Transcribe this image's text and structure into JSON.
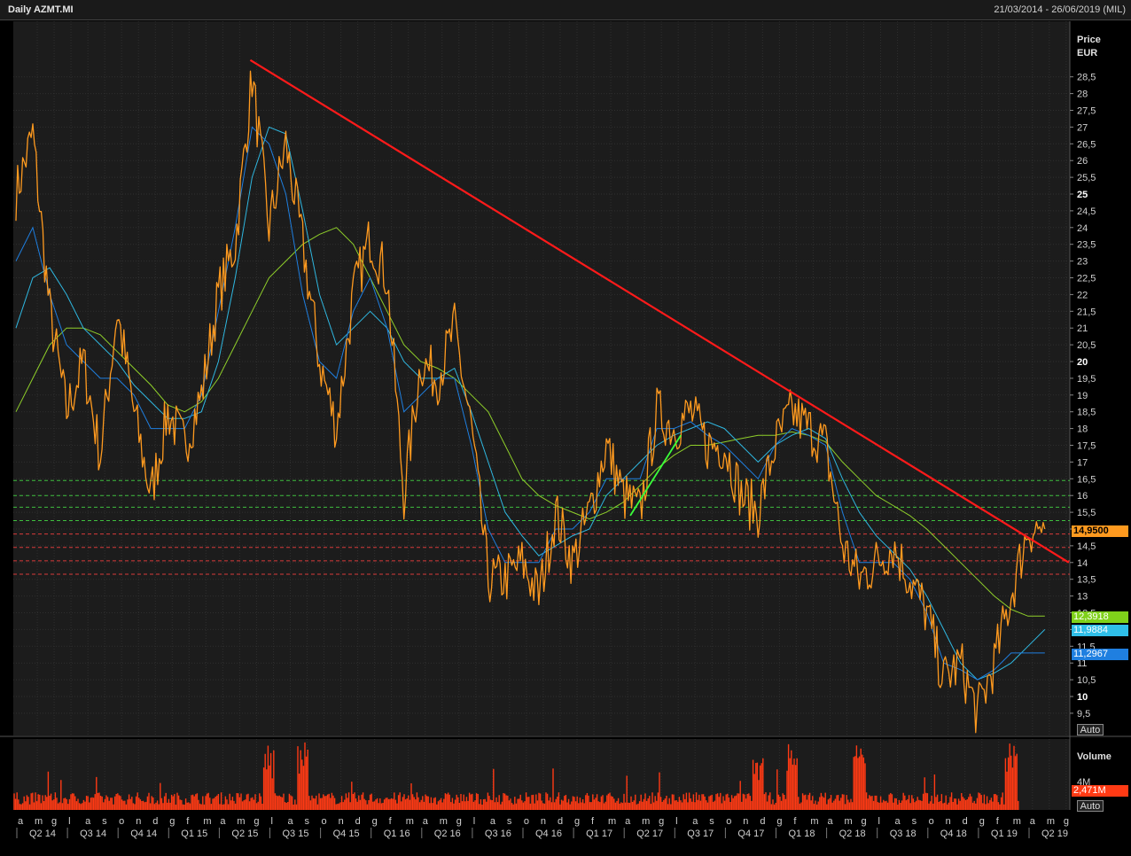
{
  "header": {
    "title": "Daily AZMT.MI",
    "date_range": "21/03/2014 - 26/06/2019 (MIL)"
  },
  "price_axis": {
    "label_line1": "Price",
    "label_line2": "EUR",
    "auto_label": "Auto",
    "ticks": [
      "28,5",
      "28",
      "27,5",
      "27",
      "26,5",
      "26",
      "25,5",
      "25",
      "24,5",
      "24",
      "23,5",
      "23",
      "22,5",
      "22",
      "21,5",
      "21",
      "20,5",
      "20",
      "19,5",
      "19",
      "18,5",
      "18",
      "17,5",
      "17",
      "16,5",
      "16",
      "15,5",
      "15",
      "14,5",
      "14",
      "13,5",
      "13",
      "12,5",
      "12",
      "11,5",
      "11",
      "10,5",
      "10",
      "9,5"
    ],
    "bold_ticks": [
      "25",
      "20",
      "15",
      "10"
    ]
  },
  "volume_axis": {
    "label": "Volume",
    "tick": "4M",
    "auto_label": "Auto"
  },
  "tags": {
    "last_price": "14,9500",
    "ma_long": "12,3918",
    "ma_mid": "11,9884",
    "ma_short": "11,2967",
    "volume": "2,471M"
  },
  "colors": {
    "price": "#ff9a1f",
    "trendline": "#ff1a1a",
    "ma_long": "#8fcf2a",
    "ma_mid": "#2fb7e0",
    "ma_short": "#1f7fe0",
    "support_green": "#3fbf3f",
    "resistance_red": "#d83a3a",
    "volume": "#ff3a14",
    "uptrend": "#3aff3a"
  },
  "x_axis": {
    "months": [
      "a",
      "m",
      "g",
      "l",
      "a",
      "s",
      "o",
      "n",
      "d",
      "g",
      "f",
      "m",
      "a",
      "m",
      "g",
      "l",
      "a",
      "s",
      "o",
      "n",
      "d",
      "g",
      "f",
      "m",
      "a",
      "m",
      "g",
      "l",
      "a",
      "s",
      "o",
      "n",
      "d",
      "g",
      "f",
      "m",
      "a",
      "m",
      "g",
      "l",
      "a",
      "s",
      "o",
      "n",
      "d",
      "g",
      "f",
      "m",
      "a",
      "m",
      "g",
      "l",
      "a",
      "s",
      "o",
      "n",
      "d",
      "g",
      "f",
      "m",
      "a",
      "m",
      "g"
    ],
    "quarters": [
      "Q2 14",
      "Q3 14",
      "Q4 14",
      "Q1 15",
      "Q2 15",
      "Q3 15",
      "Q4 15",
      "Q1 16",
      "Q2 16",
      "Q3 16",
      "Q4 16",
      "Q1 17",
      "Q2 17",
      "Q3 17",
      "Q4 17",
      "Q1 18",
      "Q2 18",
      "Q3 18",
      "Q4 18",
      "Q1 19",
      "Q2 19"
    ]
  },
  "chart_data": {
    "type": "line",
    "title": "Daily AZMT.MI",
    "ylabel": "Price EUR",
    "ylim": [
      9.0,
      29.5
    ],
    "x": [
      "2014-03",
      "2014-04",
      "2014-05",
      "2014-06",
      "2014-07",
      "2014-08",
      "2014-09",
      "2014-10",
      "2014-11",
      "2014-12",
      "2015-01",
      "2015-02",
      "2015-03",
      "2015-04",
      "2015-05",
      "2015-06",
      "2015-07",
      "2015-08",
      "2015-09",
      "2015-10",
      "2015-11",
      "2015-12",
      "2016-01",
      "2016-02",
      "2016-03",
      "2016-04",
      "2016-05",
      "2016-06",
      "2016-07",
      "2016-08",
      "2016-09",
      "2016-10",
      "2016-11",
      "2016-12",
      "2017-01",
      "2017-02",
      "2017-03",
      "2017-04",
      "2017-05",
      "2017-06",
      "2017-07",
      "2017-08",
      "2017-09",
      "2017-10",
      "2017-11",
      "2017-12",
      "2018-01",
      "2018-02",
      "2018-03",
      "2018-04",
      "2018-05",
      "2018-06",
      "2018-07",
      "2018-08",
      "2018-09",
      "2018-10",
      "2018-11",
      "2018-12",
      "2019-01",
      "2019-02",
      "2019-03",
      "2019-04"
    ],
    "series": [
      {
        "values": [
          25.0,
          26.8,
          21.5,
          18.5,
          20.0,
          17.2,
          21.5,
          18.5,
          16.0,
          18.5,
          17.5,
          19.0,
          22.0,
          23.5,
          28.5,
          24.0,
          26.5,
          23.5,
          20.0,
          18.0,
          22.0,
          23.7,
          22.5,
          16.0,
          20.0,
          19.5,
          21.0,
          18.0,
          13.5,
          13.5,
          14.0,
          13.0,
          15.5,
          14.0,
          15.5,
          17.5,
          16.0,
          15.5,
          18.5,
          18.0,
          18.5,
          17.5,
          17.5,
          16.0,
          15.5,
          17.5,
          18.5,
          18.0,
          17.5,
          14.5,
          13.5,
          14.0,
          14.5,
          13.5,
          12.5,
          10.5,
          11.0,
          9.5,
          11.0,
          13.0,
          15.0,
          15.0
        ]
      }
    ],
    "moving_averages": {
      "long": [
        18.5,
        19.5,
        20.5,
        21.0,
        21.0,
        20.8,
        20.3,
        19.8,
        19.3,
        18.7,
        18.5,
        18.8,
        19.5,
        20.5,
        21.5,
        22.5,
        23.0,
        23.5,
        23.8,
        24.0,
        23.5,
        22.5,
        21.5,
        20.5,
        20.0,
        19.8,
        19.5,
        19.0,
        18.5,
        17.5,
        16.5,
        16.0,
        15.7,
        15.5,
        15.3,
        15.5,
        15.8,
        16.3,
        16.8,
        17.2,
        17.5,
        17.5,
        17.6,
        17.7,
        17.8,
        17.8,
        17.9,
        17.8,
        17.6,
        17.0,
        16.5,
        16.0,
        15.7,
        15.4,
        15.0,
        14.5,
        14.0,
        13.5,
        13.0,
        12.6,
        12.4,
        12.4
      ],
      "mid": [
        21.0,
        22.5,
        22.8,
        22.0,
        21.0,
        20.5,
        20.0,
        19.3,
        18.8,
        18.3,
        18.3,
        18.5,
        20.0,
        22.5,
        25.5,
        27.0,
        26.8,
        24.5,
        22.0,
        20.5,
        21.0,
        21.5,
        21.0,
        20.0,
        19.5,
        19.5,
        19.8,
        18.5,
        17.0,
        15.5,
        14.8,
        14.2,
        14.5,
        14.8,
        15.0,
        16.0,
        16.5,
        17.0,
        17.5,
        17.8,
        18.0,
        18.2,
        18.0,
        17.5,
        17.0,
        17.5,
        17.8,
        18.0,
        17.7,
        16.5,
        15.5,
        14.8,
        14.3,
        13.8,
        13.0,
        12.0,
        11.0,
        10.5,
        10.7,
        11.0,
        11.5,
        12.0
      ],
      "short": [
        23.0,
        24.0,
        22.0,
        20.5,
        20.0,
        19.5,
        19.5,
        19.0,
        18.0,
        18.0,
        18.0,
        19.0,
        21.5,
        24.0,
        27.0,
        26.5,
        25.0,
        22.0,
        20.0,
        19.5,
        21.5,
        22.5,
        21.0,
        18.5,
        19.0,
        19.5,
        19.5,
        17.5,
        15.0,
        14.0,
        14.0,
        14.0,
        15.0,
        15.0,
        15.5,
        16.5,
        16.5,
        16.5,
        18.0,
        18.0,
        18.2,
        17.8,
        17.5,
        17.0,
        16.5,
        17.5,
        18.0,
        17.8,
        17.5,
        15.5,
        14.0,
        14.0,
        14.0,
        13.5,
        12.5,
        11.0,
        10.8,
        10.5,
        10.8,
        11.3,
        11.3,
        11.3
      ]
    },
    "trendline": {
      "from": [
        "2015-05",
        29.0
      ],
      "to": [
        "2019-05",
        14.0
      ]
    },
    "support_levels": [
      16.45,
      16.0,
      15.65,
      15.25
    ],
    "resistance_levels": [
      14.85,
      14.45,
      14.05,
      13.65
    ],
    "uptrend_line": {
      "from": [
        "2017-03",
        15.4
      ],
      "to": [
        "2017-06",
        17.8
      ]
    },
    "volume": {
      "label": "Volume",
      "last": "2,471M",
      "spikes_at": [
        "2015-06",
        "2015-08",
        "2017-11",
        "2018-01",
        "2018-05",
        "2019-02"
      ]
    }
  }
}
